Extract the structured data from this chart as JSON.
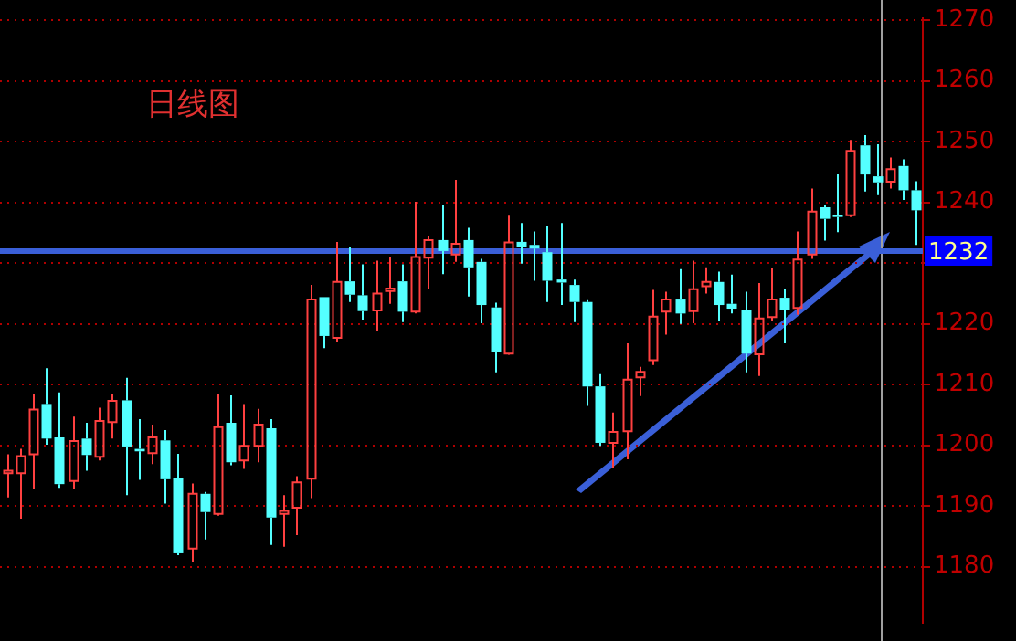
{
  "chart_data": {
    "type": "candlestick",
    "title": "日线图",
    "categories": [
      null,
      null,
      null,
      null,
      null,
      null,
      null,
      null,
      null,
      null,
      null,
      null,
      null,
      null,
      null,
      null,
      null,
      null,
      null,
      null,
      null,
      null,
      null,
      null,
      null,
      null,
      null,
      null,
      null,
      null,
      null,
      null,
      null,
      null,
      null,
      null,
      null,
      null,
      null,
      null,
      null,
      null,
      null,
      null,
      null,
      null,
      null,
      null,
      null,
      null,
      null,
      null,
      null,
      null,
      null,
      null,
      null,
      null,
      null,
      null,
      null,
      null,
      null,
      null,
      null,
      null,
      null,
      null,
      null,
      null
    ],
    "ohlc": [
      [
        1195.4,
        1198.5,
        1191.4,
        1195.8
      ],
      [
        1195.4,
        1199.4,
        1187.9,
        1198.2
      ],
      [
        1198.5,
        1208.4,
        1192.8,
        1205.9
      ],
      [
        1206.8,
        1212.7,
        1200.1,
        1201.1
      ],
      [
        1201.3,
        1208.7,
        1193.0,
        1193.6
      ],
      [
        1194.1,
        1204.7,
        1192.8,
        1200.7
      ],
      [
        1201.1,
        1203.7,
        1195.8,
        1198.4
      ],
      [
        1198.1,
        1206.2,
        1197.5,
        1204.0
      ],
      [
        1203.8,
        1208.5,
        1201.1,
        1207.3
      ],
      [
        1207.4,
        1211.1,
        1191.8,
        1199.8
      ],
      [
        1199.4,
        1204.3,
        1194.3,
        1199.0
      ],
      [
        1198.7,
        1203.4,
        1196.9,
        1201.3
      ],
      [
        1200.8,
        1202.5,
        1190.4,
        1194.4
      ],
      [
        1194.6,
        1198.6,
        1181.9,
        1182.2
      ],
      [
        1183.0,
        1193.7,
        1180.8,
        1192.0
      ],
      [
        1192.0,
        1192.3,
        1184.5,
        1189.0
      ],
      [
        1188.7,
        1208.5,
        1188.4,
        1203.0
      ],
      [
        1203.7,
        1208.2,
        1196.7,
        1197.2
      ],
      [
        1197.5,
        1206.8,
        1196.1,
        1199.9
      ],
      [
        1199.9,
        1206.0,
        1197.2,
        1203.4
      ],
      [
        1202.8,
        1204.3,
        1183.6,
        1188.1
      ],
      [
        1188.7,
        1191.8,
        1183.3,
        1189.2
      ],
      [
        1189.7,
        1194.9,
        1185.2,
        1193.9
      ],
      [
        1194.5,
        1226.4,
        1191.3,
        1224.0
      ],
      [
        1224.4,
        1224.4,
        1216.0,
        1218.0
      ],
      [
        1217.7,
        1233.5,
        1217.1,
        1226.9
      ],
      [
        1227.0,
        1232.7,
        1223.6,
        1224.8
      ],
      [
        1224.7,
        1229.8,
        1220.7,
        1222.1
      ],
      [
        1222.2,
        1230.4,
        1218.8,
        1225.0
      ],
      [
        1225.4,
        1231.0,
        1223.3,
        1225.8
      ],
      [
        1227.0,
        1229.8,
        1220.3,
        1222.0
      ],
      [
        1222.0,
        1240.1,
        1221.7,
        1231.0
      ],
      [
        1230.9,
        1234.5,
        1225.7,
        1233.8
      ],
      [
        1233.8,
        1239.5,
        1228.2,
        1232.0
      ],
      [
        1231.4,
        1243.7,
        1230.2,
        1233.2
      ],
      [
        1233.8,
        1235.8,
        1224.5,
        1229.3
      ],
      [
        1230.2,
        1230.7,
        1220.1,
        1223.1
      ],
      [
        1222.7,
        1223.5,
        1212.0,
        1215.4
      ],
      [
        1215.1,
        1237.8,
        1214.9,
        1233.4
      ],
      [
        1233.5,
        1236.6,
        1229.9,
        1232.7
      ],
      [
        1233.0,
        1235.2,
        1227.1,
        1232.4
      ],
      [
        1231.8,
        1236.1,
        1223.6,
        1227.1
      ],
      [
        1227.3,
        1236.6,
        1223.1,
        1226.8
      ],
      [
        1226.4,
        1227.3,
        1220.3,
        1223.6
      ],
      [
        1223.6,
        1223.9,
        1206.5,
        1209.7
      ],
      [
        1209.7,
        1211.7,
        1199.9,
        1200.4
      ],
      [
        1200.4,
        1205.4,
        1196.3,
        1202.2
      ],
      [
        1202.3,
        1216.8,
        1197.7,
        1210.8
      ],
      [
        1211.2,
        1212.9,
        1208.1,
        1212.1
      ],
      [
        1214.0,
        1225.6,
        1213.2,
        1221.2
      ],
      [
        1222.0,
        1225.3,
        1218.2,
        1224.0
      ],
      [
        1224.0,
        1229.0,
        1220.0,
        1221.7
      ],
      [
        1222.1,
        1230.4,
        1220.1,
        1225.7
      ],
      [
        1226.2,
        1229.3,
        1225.0,
        1226.9
      ],
      [
        1226.9,
        1228.6,
        1220.5,
        1223.1
      ],
      [
        1223.3,
        1228.1,
        1221.7,
        1222.5
      ],
      [
        1222.3,
        1225.3,
        1212.0,
        1215.1
      ],
      [
        1215.0,
        1226.7,
        1211.4,
        1220.9
      ],
      [
        1221.1,
        1229.2,
        1220.5,
        1224.0
      ],
      [
        1224.3,
        1225.7,
        1216.8,
        1222.3
      ],
      [
        1222.6,
        1235.2,
        1221.5,
        1230.6
      ],
      [
        1231.4,
        1242.3,
        1230.7,
        1238.5
      ],
      [
        1239.2,
        1239.5,
        1233.7,
        1237.3
      ],
      [
        1237.9,
        1244.6,
        1235.1,
        1237.6
      ],
      [
        1237.9,
        1250.3,
        1237.6,
        1248.5
      ],
      [
        1249.4,
        1251.1,
        1241.8,
        1244.6
      ],
      [
        1244.3,
        1249.6,
        1241.2,
        1243.3
      ],
      [
        1243.4,
        1247.4,
        1242.3,
        1245.5
      ],
      [
        1246.0,
        1247.1,
        1240.4,
        1242.0
      ],
      [
        1242.0,
        1243.5,
        1233.0,
        1238.7
      ]
    ],
    "colors": [
      "#ff4040",
      "#ff4040",
      "#ff4040",
      "#54ffff",
      "#54ffff",
      "#ff4040",
      "#54ffff",
      "#ff4040",
      "#ff4040",
      "#54ffff",
      "#54ffff",
      "#ff4040",
      "#54ffff",
      "#54ffff",
      "#ff4040",
      "#54ffff",
      "#ff4040",
      "#54ffff",
      "#ff4040",
      "#ff4040",
      "#54ffff",
      "#ff4040",
      "#ff4040",
      "#ff4040",
      "#54ffff",
      "#ff4040",
      "#54ffff",
      "#54ffff",
      "#ff4040",
      "#ff4040",
      "#54ffff",
      "#ff4040",
      "#ff4040",
      "#54ffff",
      "#ff4040",
      "#54ffff",
      "#54ffff",
      "#54ffff",
      "#ff4040",
      "#54ffff",
      "#54ffff",
      "#54ffff",
      "#54ffff",
      "#54ffff",
      "#54ffff",
      "#54ffff",
      "#ff4040",
      "#ff4040",
      "#ff4040",
      "#ff4040",
      "#ff4040",
      "#54ffff",
      "#ff4040",
      "#ff4040",
      "#54ffff",
      "#54ffff",
      "#54ffff",
      "#ff4040",
      "#ff4040",
      "#54ffff",
      "#ff4040",
      "#ff4040",
      "#54ffff",
      "#54ffff",
      "#ff4040",
      "#54ffff",
      "#54ffff",
      "#ff4040",
      "#54ffff",
      "#54ffff"
    ],
    "ylim": [
      1170.7,
      1270.4
    ],
    "yticks": [
      1180,
      1190,
      1200,
      1210,
      1220,
      {
        "value": 1230,
        "label": null
      },
      1240,
      1250,
      1260,
      1270
    ],
    "grid": "y",
    "ref_lines": [
      {
        "axis": "y",
        "value": 1232,
        "label": "1232",
        "color": "#3a5fd8"
      }
    ]
  }
}
